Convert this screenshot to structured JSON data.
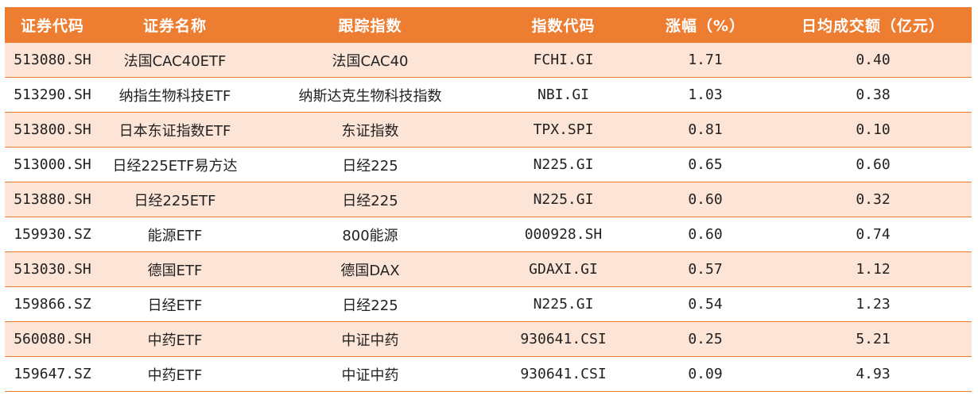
{
  "colors": {
    "header_bg": "#ED7D31",
    "header_text": "#FFFFFF",
    "row_shade": "#FCE4D6",
    "row_plain": "#FFFFFF",
    "divider": "#ED7D31"
  },
  "table": {
    "headers": [
      "证券代码",
      "证券名称",
      "跟踪指数",
      "指数代码",
      "涨幅（%）",
      "日均成交额（亿元）"
    ],
    "rows": [
      [
        "513080.SH",
        "法国CAC40ETF",
        "法国CAC40",
        "FCHI.GI",
        "1.71",
        "0.40"
      ],
      [
        "513290.SH",
        "纳指生物科技ETF",
        "纳斯达克生物科技指数",
        "NBI.GI",
        "1.03",
        "0.38"
      ],
      [
        "513800.SH",
        "日本东证指数ETF",
        "东证指数",
        "TPX.SPI",
        "0.81",
        "0.10"
      ],
      [
        "513000.SH",
        "日经225ETF易方达",
        "日经225",
        "N225.GI",
        "0.65",
        "0.60"
      ],
      [
        "513880.SH",
        "日经225ETF",
        "日经225",
        "N225.GI",
        "0.60",
        "0.32"
      ],
      [
        "159930.SZ",
        "能源ETF",
        "800能源",
        "000928.SH",
        "0.60",
        "0.74"
      ],
      [
        "513030.SH",
        "德国ETF",
        "德国DAX",
        "GDAXI.GI",
        "0.57",
        "1.12"
      ],
      [
        "159866.SZ",
        "日经ETF",
        "日经225",
        "N225.GI",
        "0.54",
        "1.23"
      ],
      [
        "560080.SH",
        "中药ETF",
        "中证中药",
        "930641.CSI",
        "0.25",
        "5.21"
      ],
      [
        "159647.SZ",
        "中药ETF",
        "中证中药",
        "930641.CSI",
        "0.09",
        "4.93"
      ]
    ]
  }
}
